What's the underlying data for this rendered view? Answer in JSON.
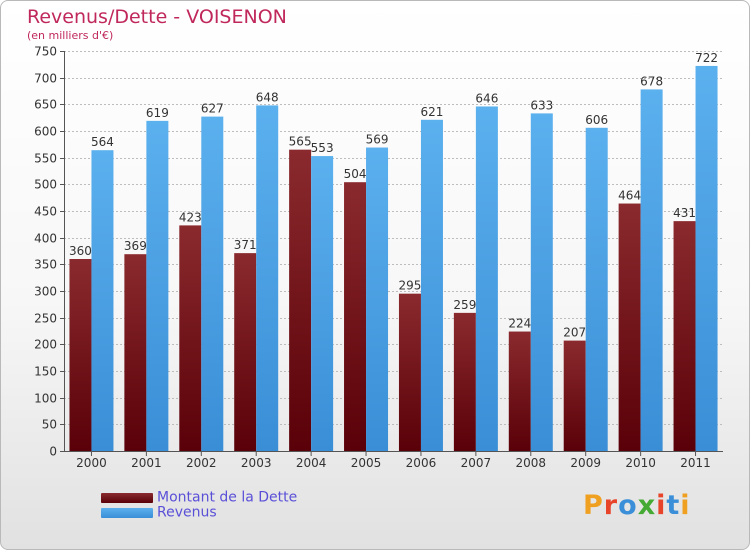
{
  "title": "Revenus/Dette - VOISENON",
  "subtitle": "(en milliers d'€)",
  "brand": {
    "text": "Proxiti",
    "colors": [
      "#f0a020",
      "#e8442a",
      "#3a8fd8",
      "#44aa33",
      "#e8442a",
      "#3a8fd8",
      "#f0a020"
    ]
  },
  "colors": {
    "debt_top": "#8a2a2e",
    "debt_bottom": "#5a0008",
    "rev_top": "#5bb0ee",
    "rev_bottom": "#3a8ed6",
    "grid": "#bdbdbd",
    "axis": "#555555",
    "label": "#333333"
  },
  "chart_data": {
    "type": "bar",
    "categories": [
      "2000",
      "2001",
      "2002",
      "2003",
      "2004",
      "2005",
      "2006",
      "2007",
      "2008",
      "2009",
      "2010",
      "2011"
    ],
    "series": [
      {
        "name": "Montant de la Dette",
        "values": [
          360,
          369,
          423,
          371,
          565,
          504,
          295,
          259,
          224,
          207,
          464,
          431
        ]
      },
      {
        "name": "Revenus",
        "values": [
          564,
          619,
          627,
          648,
          553,
          569,
          621,
          646,
          633,
          606,
          678,
          722
        ]
      }
    ],
    "ylim": [
      0,
      750
    ],
    "yticks": [
      0,
      50,
      100,
      150,
      200,
      250,
      300,
      350,
      400,
      450,
      500,
      550,
      600,
      650,
      700,
      750
    ],
    "grid": true,
    "legend": "bottom-left"
  }
}
